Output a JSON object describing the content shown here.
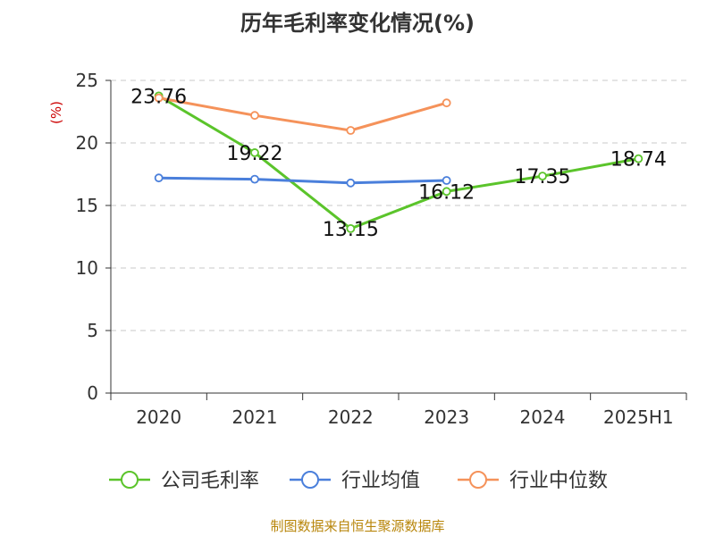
{
  "title": "历年毛利率变化情况(%)",
  "source": "制图数据来自恒生聚源数据库",
  "chart_data": {
    "type": "line",
    "title": "历年毛利率变化情况(%)",
    "ylabel": "(%)",
    "xlabel": "",
    "ylim": [
      0,
      25
    ],
    "yticks": [
      "0",
      "5",
      "10",
      "15",
      "20",
      "25"
    ],
    "categories": [
      "2020",
      "2021",
      "2022",
      "2023",
      "2024",
      "2025H1"
    ],
    "grid": "horizontal dashed",
    "legend_position": "bottom",
    "series": [
      {
        "name": "公司毛利率",
        "color": "#5BC42B",
        "values": [
          23.76,
          19.22,
          13.15,
          16.12,
          17.35,
          18.74
        ],
        "labels": [
          "23.76",
          "19.22",
          "13.15",
          "16.12",
          "17.35",
          "18.74"
        ]
      },
      {
        "name": "行业均值",
        "color": "#4A7FDB",
        "values": [
          17.2,
          17.1,
          16.8,
          17.0,
          null,
          null
        ]
      },
      {
        "name": "行业中位数",
        "color": "#F5925A",
        "values": [
          23.6,
          22.2,
          21.0,
          23.2,
          null,
          null
        ]
      }
    ]
  }
}
